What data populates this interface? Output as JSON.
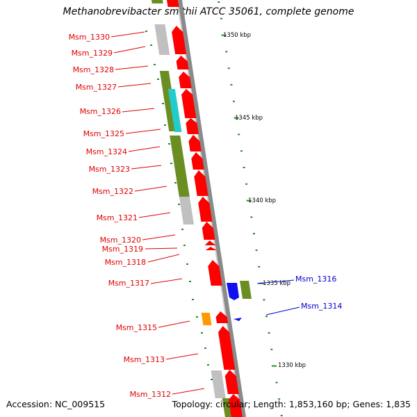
{
  "title": "Methanobrevibacter smithii ATCC 35061, complete genome",
  "footer": {
    "accession": "Accession: NC_009515",
    "summary": "Topology: circular; Length: 1,853,160 bp; Genes: 1,835"
  },
  "colors": {
    "forward_cds": "#ff0000",
    "reverse_blue": "#1010ee",
    "olive": "#6b8e23",
    "grey": "#c0c0c0",
    "cyan": "#22cccc",
    "orange": "#ff9900",
    "ruler": "#228b22",
    "left_label": "#e00000",
    "right_label": "#0000cc"
  },
  "ruler_labels": [
    "1350 kbp",
    "1345 kbp",
    "1340 kbp",
    "1335 kbp",
    "1330 kbp"
  ],
  "left_genes": [
    "Msm_1330",
    "Msm_1329",
    "Msm_1328",
    "Msm_1327",
    "Msm_1326",
    "Msm_1325",
    "Msm_1324",
    "Msm_1323",
    "Msm_1322",
    "Msm_1321",
    "Msm_1320",
    "Msm_1319",
    "Msm_1318",
    "Msm_1317",
    "Msm_1315",
    "Msm_1313",
    "Msm_1312"
  ],
  "right_genes": [
    "Msm_1316",
    "Msm_1314"
  ]
}
